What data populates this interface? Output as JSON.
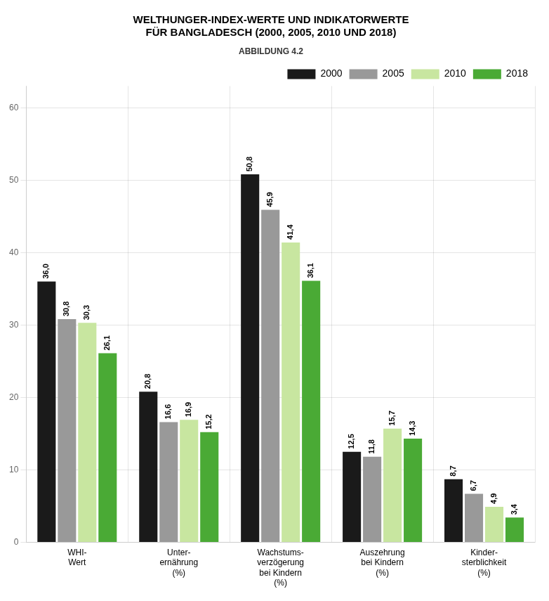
{
  "chart_data": {
    "type": "bar",
    "title": [
      "WELTHUNGER-INDEX-WERTE UND INDIKATORWERTE",
      "FÜR BANGLADESCH (2000, 2005, 2010 UND 2018)"
    ],
    "subtitle": "ABBILDUNG 4.2",
    "categories": [
      "WHI-\nWert",
      "Unter-\nernährung\n(%)",
      "Wachstums-\nverzögerung\nbei Kindern\n(%)",
      "Auszehrung\nbei Kindern\n(%)",
      "Kinder-\nsterblichkeit\n(%)"
    ],
    "series": [
      {
        "name": "2000",
        "color": "#1a1a1a",
        "values": [
          36.0,
          20.8,
          50.8,
          12.5,
          8.7
        ],
        "value_labels": [
          "36,0",
          "20,8",
          "50,8",
          "12,5",
          "8,7"
        ]
      },
      {
        "name": "2005",
        "color": "#999999",
        "values": [
          30.8,
          16.6,
          45.9,
          11.8,
          6.7
        ],
        "value_labels": [
          "30,8",
          "16,6",
          "45,9",
          "11,8",
          "6,7"
        ]
      },
      {
        "name": "2010",
        "color": "#c8e6a0",
        "values": [
          30.3,
          16.9,
          41.4,
          15.7,
          4.9
        ],
        "value_labels": [
          "30,3",
          "16,9",
          "41,4",
          "15,7",
          "4,9"
        ]
      },
      {
        "name": "2018",
        "color": "#4aaa35",
        "values": [
          26.1,
          15.2,
          36.1,
          14.3,
          3.4
        ],
        "value_labels": [
          "26,1",
          "15,2",
          "36,1",
          "14,3",
          "3,4"
        ]
      }
    ],
    "ylim": [
      0,
      63
    ],
    "yticks": [
      0,
      10,
      20,
      30,
      40,
      50,
      60
    ],
    "grid": true,
    "legend": "upper right",
    "data_labels": true
  }
}
